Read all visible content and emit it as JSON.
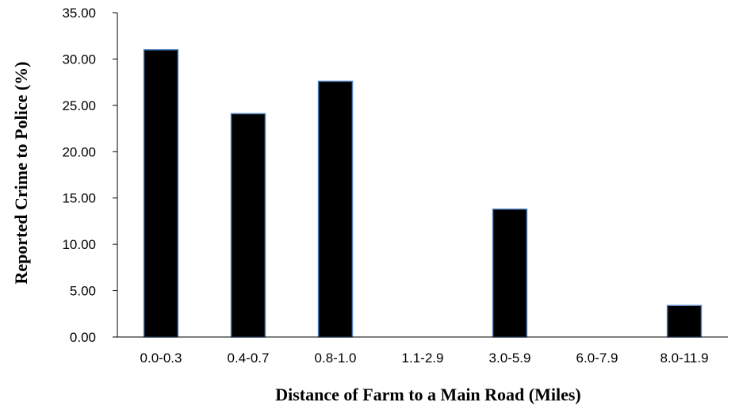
{
  "chart_data": {
    "type": "bar",
    "title": "",
    "xlabel": "Distance of Farm to a Main Road (Miles)",
    "ylabel": "Reported Crime to Police (%)",
    "categories": [
      "0.0-0.3",
      "0.4-0.7",
      "0.8-1.0",
      "1.1-2.9",
      "3.0-5.9",
      "6.0-7.9",
      "8.0-11.9"
    ],
    "values": [
      31.0,
      24.1,
      27.6,
      0,
      13.8,
      0,
      3.4
    ],
    "ylim": [
      0,
      35
    ],
    "yticks": [
      "0.00",
      "5.00",
      "10.00",
      "15.00",
      "20.00",
      "25.00",
      "30.00",
      "35.00"
    ],
    "grid": false,
    "legend": "none",
    "colors": {
      "bar_fill": "#000000",
      "bar_edge": "#4f81bd",
      "axis": "#000000"
    }
  }
}
